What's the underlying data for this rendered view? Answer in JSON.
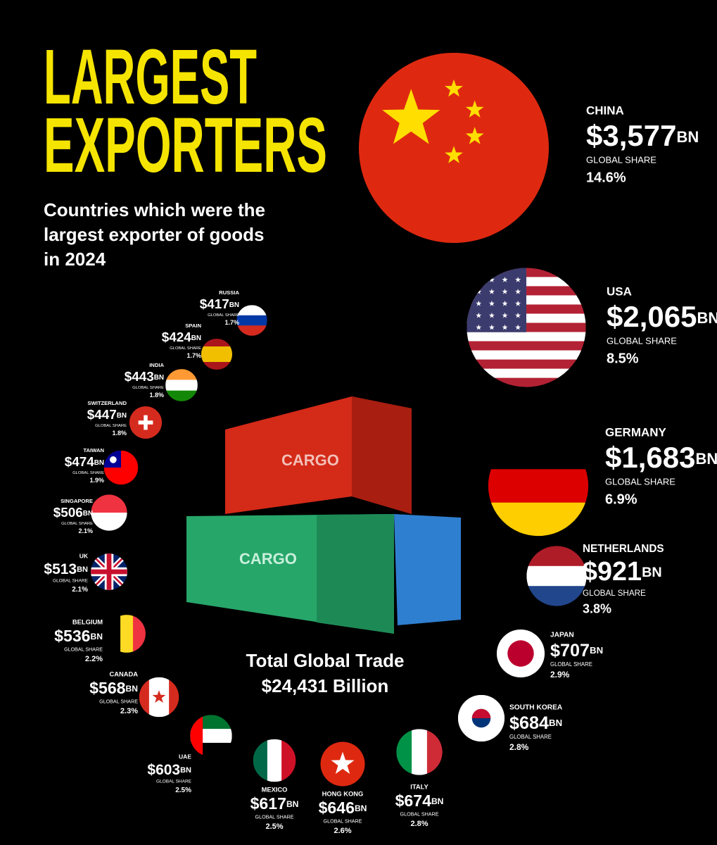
{
  "chart_data": {
    "type": "bubble",
    "title": [
      "LARGEST",
      "EXPORTERS"
    ],
    "subtitle": [
      "Countries which were the",
      "largest exporter of goods",
      "in 2024"
    ],
    "annotations": [
      "Total Global Trade",
      "$24,431 Billion"
    ],
    "container_label": "CARGO",
    "unit_label": "BN",
    "share_label": "GLOBAL SHARE",
    "categories": [
      "CHINA",
      "USA",
      "GERMANY",
      "NETHERLANDS",
      "JAPAN",
      "SOUTH KOREA",
      "ITALY",
      "HONG KONG",
      "MEXICO",
      "UAE",
      "CANADA",
      "BELGIUM",
      "UK",
      "SINGAPORE",
      "TAIWAN",
      "SWITZERLAND",
      "INDIA",
      "SPAIN",
      "RUSSIA"
    ],
    "values": [
      3577,
      2065,
      1683,
      921,
      707,
      684,
      674,
      646,
      617,
      603,
      568,
      536,
      513,
      506,
      474,
      447,
      443,
      424,
      417
    ],
    "value_labels": [
      "$3,577",
      "$2,065",
      "$1,683",
      "$921",
      "$707",
      "$684",
      "$674",
      "$646",
      "$617",
      "$603",
      "$568",
      "$536",
      "$513",
      "$506",
      "$474",
      "$447",
      "$443",
      "$424",
      "$417"
    ],
    "shares": [
      14.6,
      8.5,
      6.9,
      3.8,
      2.9,
      2.8,
      2.8,
      2.6,
      2.5,
      2.5,
      2.3,
      2.2,
      2.1,
      2.1,
      1.9,
      1.8,
      1.8,
      1.7,
      1.7
    ],
    "share_labels": [
      "14.6%",
      "8.5%",
      "6.9%",
      "3.8%",
      "2.9%",
      "2.8%",
      "2.8%",
      "2.6%",
      "2.5%",
      "2.5%",
      "2.3%",
      "2.2%",
      "2.1%",
      "2.1%",
      "1.9%",
      "1.8%",
      "1.8%",
      "1.7%",
      "1.7%"
    ]
  }
}
